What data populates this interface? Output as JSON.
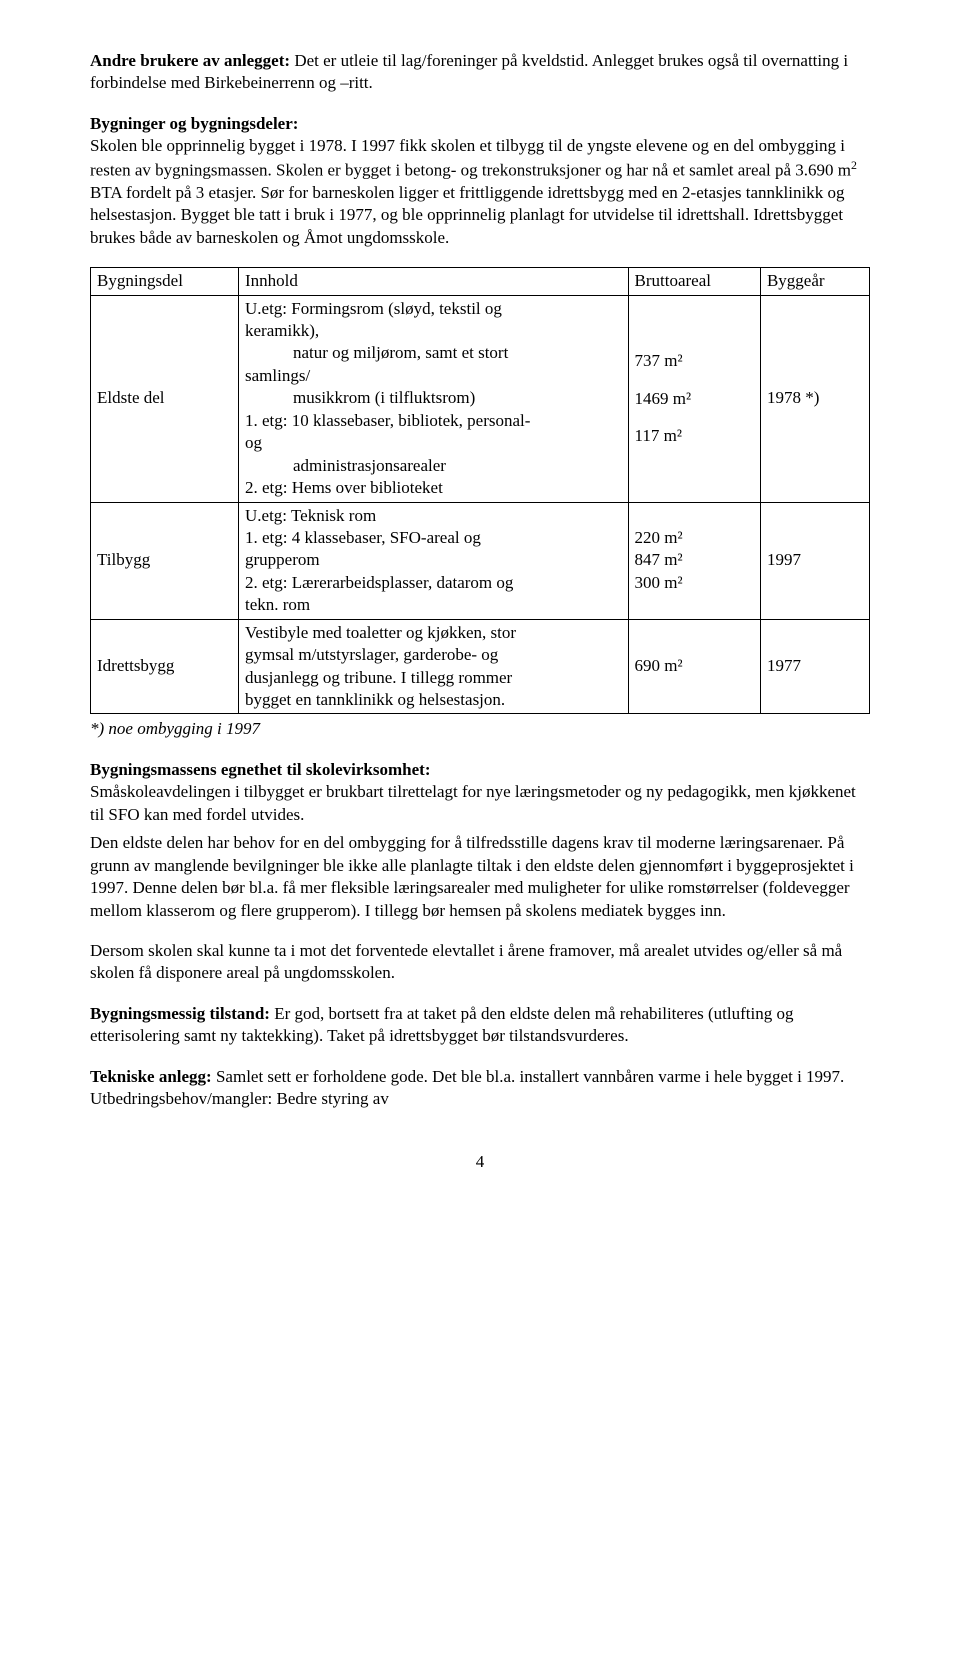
{
  "p1_label": "Andre brukere av anlegget:",
  "p1_text": " Det er utleie til lag/foreninger på kveldstid. Anlegget brukes også til overnatting i forbindelse med Birkebeinerrenn og –ritt.",
  "p2_label": "Bygninger og bygningsdeler:",
  "p2_text": "Skolen ble opprinnelig bygget i 1978. I 1997 fikk skolen et tilbygg til de yngste elevene og en del ombygging i resten av bygningsmassen. Skolen er bygget i betong- og trekonstruksjoner og har nå et samlet areal på 3.690 m",
  "p2_text2": " BTA fordelt på 3 etasjer. Sør for barneskolen ligger et frittliggende idrettsbygg med en 2-etasjes tannklinikk og helsestasjon. Bygget ble tatt i bruk i 1977, og ble opprinnelig planlagt for utvidelse til idrettshall. Idrettsbygget brukes både av barneskolen og Åmot ungdomsskole.",
  "sup2": "2",
  "table": {
    "headers": [
      "Bygningsdel",
      "Innhold",
      "Bruttoareal",
      "Byggeår"
    ],
    "rows": [
      {
        "col1": "Eldste del",
        "col2_lines": [
          "U.etg: Formingsrom (sløyd, tekstil og keramikk),",
          "          natur og miljørom, samt et stort samlings/",
          "          musikkrom (i tilfluktsrom)",
          "1. etg: 10 klassebaser, bibliotek, personal- og",
          "          administrasjonsarealer",
          "2. etg: Hems over biblioteket"
        ],
        "col3_lines": [
          "737 m²",
          "1469 m²",
          "117 m²"
        ],
        "col4": "1978 *)"
      },
      {
        "col1": "Tilbygg",
        "col2_lines": [
          "U.etg: Teknisk rom",
          "1. etg: 4 klassebaser, SFO-areal og grupperom",
          "2. etg: Lærerarbeidsplasser, datarom og tekn. rom"
        ],
        "col3_lines": [
          "220 m²",
          "847 m²",
          "300 m²"
        ],
        "col4": "1997"
      },
      {
        "col1": "Idrettsbygg",
        "col2_lines": [
          "Vestibyle med toaletter og kjøkken, stor gymsal m/utstyrslager, garderobe- og dusjanlegg og tribune. I tillegg rommer bygget en tannklinikk og helsestasjon."
        ],
        "col3_lines": [
          "690 m²"
        ],
        "col4": "1977"
      }
    ]
  },
  "footnote": "*) noe ombygging i 1997",
  "p3_label": "Bygningsmassens egnethet til skolevirksomhet:",
  "p3_text": "Småskoleavdelingen i tilbygget er brukbart tilrettelagt for nye læringsmetoder og ny pedagogikk, men kjøkkenet til SFO kan med fordel utvides.",
  "p3b_text": "Den eldste delen har behov for en del ombygging for å tilfredsstille dagens krav til moderne læringsarenaer. På grunn av manglende bevilgninger ble ikke alle planlagte tiltak i den eldste delen gjennomført i byggeprosjektet i 1997. Denne delen bør bl.a. få mer fleksible læringsarealer med muligheter for ulike romstørrelser (foldevegger mellom klasserom og flere grupperom). I tillegg bør hemsen på skolens mediatek bygges inn.",
  "p4_text": "Dersom skolen skal kunne ta i mot det forventede elevtallet i årene framover, må arealet utvides og/eller så må skolen få disponere areal på ungdomsskolen.",
  "p5_label": "Bygningsmessig tilstand:",
  "p5_text": " Er god, bortsett fra at taket på den eldste delen må rehabiliteres (utlufting og etterisolering samt ny taktekking). Taket på idrettsbygget bør tilstandsvurderes.",
  "p6_label": "Tekniske anlegg:",
  "p6_text": " Samlet sett er forholdene gode. Det ble bl.a. installert vannbåren varme i hele bygget i 1997. Utbedringsbehov/mangler: Bedre styring av",
  "page_number": "4"
}
